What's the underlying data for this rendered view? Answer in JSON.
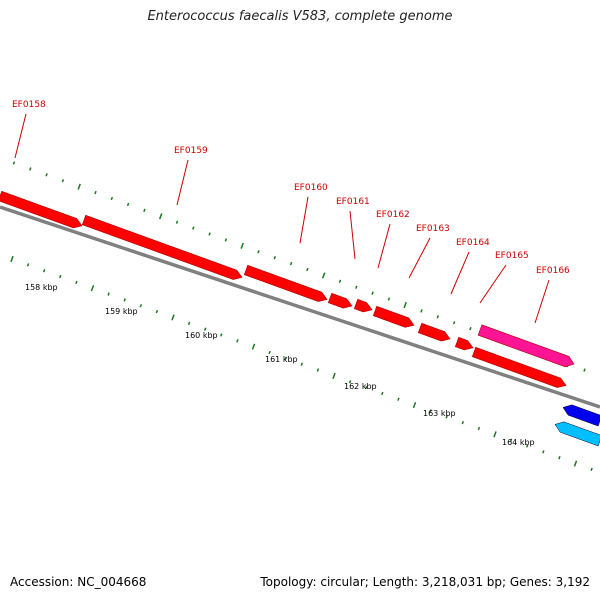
{
  "title": "Enterococcus faecalis V583, complete genome",
  "footer": {
    "accession": "Accession: NC_004668",
    "summary": "Topology: circular; Length: 3,218,031 bp; Genes: 3,192"
  },
  "colors": {
    "cds": "#ff0000",
    "cds_highlight": "#ff1493",
    "backbone": "#808080",
    "ticks": "#1a7a1a",
    "labels": "#cc0000",
    "reverse_gene_1": "#0000ee",
    "reverse_gene_2": "#00bfff"
  },
  "genes": [
    {
      "name": "EF0158"
    },
    {
      "name": "EF0159"
    },
    {
      "name": "EF0160"
    },
    {
      "name": "EF0161"
    },
    {
      "name": "EF0162"
    },
    {
      "name": "EF0163"
    },
    {
      "name": "EF0164"
    },
    {
      "name": "EF0165"
    },
    {
      "name": "EF0166"
    }
  ],
  "scale_labels": [
    "158 kbp",
    "159 kbp",
    "160 kbp",
    "161 kbp",
    "162 kbp",
    "163 kbp",
    "164 kbp"
  ]
}
